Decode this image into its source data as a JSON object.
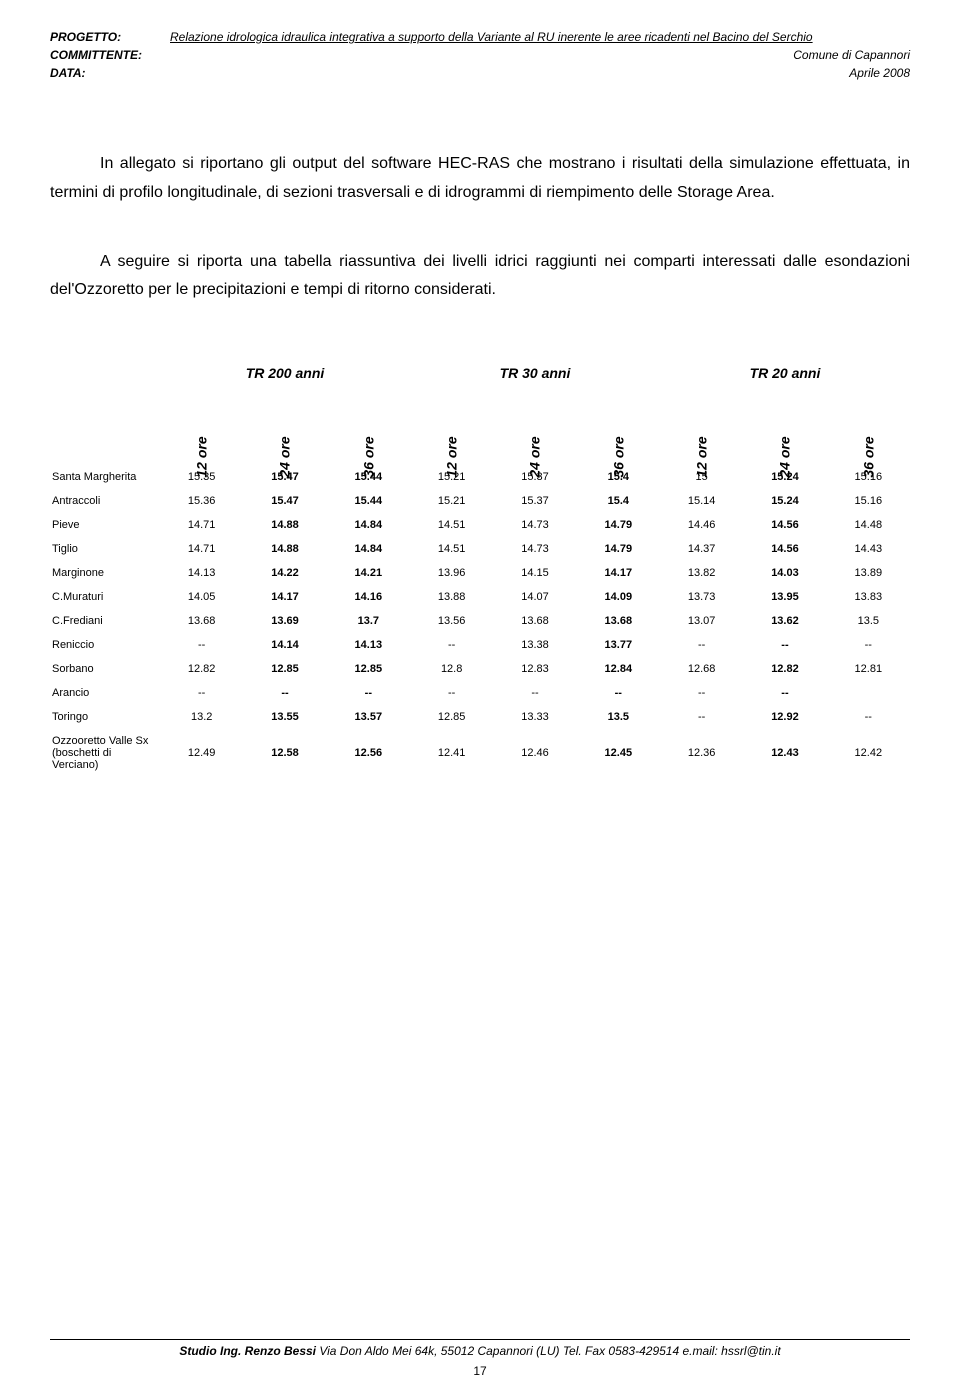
{
  "header": {
    "progetto_label": "PROGETTO:",
    "progetto_value": "Relazione idrologica idraulica integrativa a supporto della Variante al RU inerente le aree ricadenti nel Bacino del Serchio",
    "committente_label": "COMMITTENTE:",
    "committente_value": "Comune di Capannori",
    "data_label": "DATA:",
    "data_value": "Aprile 2008"
  },
  "paragraphs": {
    "p1": "In allegato si riportano gli output del software HEC-RAS che mostrano i risultati della simulazione effettuata, in termini di profilo longitudinale, di sezioni trasversali e di idrogrammi di riempimento delle Storage Area.",
    "p2": "A seguire si riporta una tabella riassuntiva dei livelli idrici raggiunti nei comparti interessati dalle esondazioni del'Ozzoretto per le precipitazioni e tempi di ritorno considerati."
  },
  "table": {
    "groups": [
      "TR 200 anni",
      "TR 30 anni",
      "TR 20 anni"
    ],
    "subheaders": [
      "12 ore",
      "24 ore",
      "36 ore"
    ],
    "bold_cols": [
      false,
      true,
      true,
      false,
      false,
      true,
      false,
      true,
      false
    ],
    "rows": [
      {
        "label": "Santa Margherita",
        "values": [
          "15.35",
          "15.47",
          "15.44",
          "15.21",
          "15.37",
          "15.4",
          "15",
          "15.24",
          "15.16"
        ]
      },
      {
        "label": "Antraccoli",
        "values": [
          "15.36",
          "15.47",
          "15.44",
          "15.21",
          "15.37",
          "15.4",
          "15.14",
          "15.24",
          "15.16"
        ]
      },
      {
        "label": "Pieve",
        "values": [
          "14.71",
          "14.88",
          "14.84",
          "14.51",
          "14.73",
          "14.79",
          "14.46",
          "14.56",
          "14.48"
        ]
      },
      {
        "label": "Tiglio",
        "values": [
          "14.71",
          "14.88",
          "14.84",
          "14.51",
          "14.73",
          "14.79",
          "14.37",
          "14.56",
          "14.43"
        ]
      },
      {
        "label": "Marginone",
        "values": [
          "14.13",
          "14.22",
          "14.21",
          "13.96",
          "14.15",
          "14.17",
          "13.82",
          "14.03",
          "13.89"
        ]
      },
      {
        "label": "C.Muraturi",
        "values": [
          "14.05",
          "14.17",
          "14.16",
          "13.88",
          "14.07",
          "14.09",
          "13.73",
          "13.95",
          "13.83"
        ]
      },
      {
        "label": "C.Frediani",
        "values": [
          "13.68",
          "13.69",
          "13.7",
          "13.56",
          "13.68",
          "13.68",
          "13.07",
          "13.62",
          "13.5"
        ]
      },
      {
        "label": "Reniccio",
        "values": [
          "--",
          "14.14",
          "14.13",
          "--",
          "13.38",
          "13.77",
          "--",
          "--",
          "--"
        ]
      },
      {
        "label": "Sorbano",
        "values": [
          "12.82",
          "12.85",
          "12.85",
          "12.8",
          "12.83",
          "12.84",
          "12.68",
          "12.82",
          "12.81"
        ]
      },
      {
        "label": "Arancio",
        "values": [
          "--",
          "--",
          "--",
          "--",
          "--",
          "--",
          "--",
          "--",
          ""
        ]
      },
      {
        "label": "Toringo",
        "values": [
          "13.2",
          "13.55",
          "13.57",
          "12.85",
          "13.33",
          "13.5",
          "--",
          "12.92",
          "--"
        ]
      },
      {
        "label": "Ozzooretto Valle Sx (boschetti di Verciano)",
        "values": [
          "12.49",
          "12.58",
          "12.56",
          "12.41",
          "12.46",
          "12.45",
          "12.36",
          "12.43",
          "12.42"
        ]
      }
    ]
  },
  "footer": {
    "studio": "Studio Ing. Renzo Bessi",
    "address": " Via Don Aldo Mei 64k, 55012 Capannori (LU) Tel. Fax 0583-429514 e.mail: hssrl@tin.it",
    "page_number": "17"
  },
  "style": {
    "text_color": "#000000",
    "background": "#ffffff",
    "body_fontsize": 16,
    "table_fontsize": 11
  }
}
